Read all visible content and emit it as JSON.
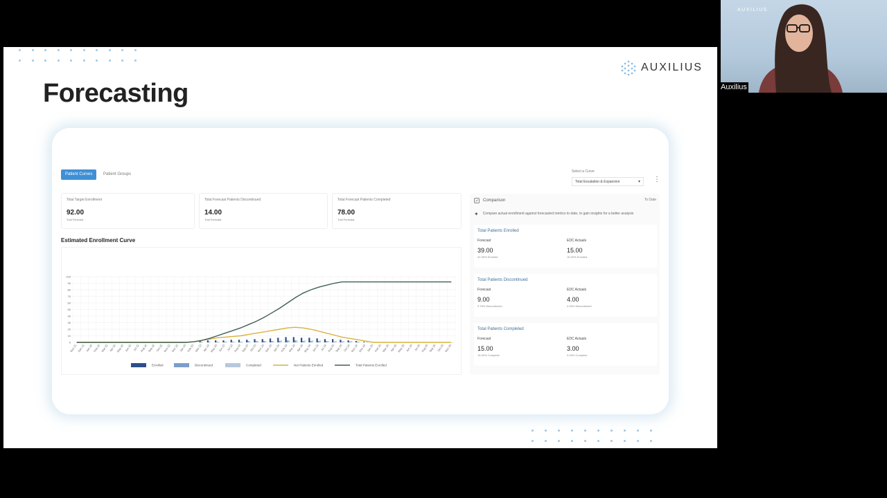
{
  "slide": {
    "title": "Forecasting",
    "logo_text": "AUXILIUS"
  },
  "tabs": [
    {
      "label": "Patient Curves",
      "active": true
    },
    {
      "label": "Patient Groups",
      "active": false
    }
  ],
  "curve_select": {
    "label": "Select a Curve",
    "value": "Total Escalation & Expansion"
  },
  "stats": [
    {
      "label": "Total Target Enrollment",
      "value": "92.00",
      "sub": "Trial Forecast"
    },
    {
      "label": "Total Forecast Patients Discontinued",
      "value": "14.00",
      "sub": "Trial Forecast"
    },
    {
      "label": "Total Forecast Patients Completed",
      "value": "78.00",
      "sub": "Trial Forecast"
    }
  ],
  "curve_title": "Estimated Enrollment Curve",
  "comparison": {
    "title": "Comparison",
    "scope": "To Date",
    "description": "Compare actual enrollment against forecasted metrics to date, to gain insights for a better analysis",
    "cards": [
      {
        "title": "Total Patients Enrolled",
        "forecast_label": "Forecast",
        "forecast_value": "39.00",
        "forecast_sub": "42.39% Enrolled",
        "actual_label": "EDC Actuals",
        "actual_value": "15.00",
        "actual_sub": "16.30% Enrolled"
      },
      {
        "title": "Total Patients Discontinued",
        "forecast_label": "Forecast",
        "forecast_value": "9.00",
        "forecast_sub": "9.78% Discontinued",
        "actual_label": "EDC Actuals",
        "actual_value": "4.00",
        "actual_sub": "4.35% Discontinued"
      },
      {
        "title": "Total Patients Completed",
        "forecast_label": "Forecast",
        "forecast_value": "15.00",
        "forecast_sub": "16.30% Complete",
        "actual_label": "EDC Actuals",
        "actual_value": "3.00",
        "actual_sub": "3.26% Complete"
      }
    ]
  },
  "chart_data": {
    "type": "line",
    "title": "Estimated Enrollment Curve",
    "ylim": [
      0,
      100
    ],
    "yticks": [
      0,
      10,
      20,
      30,
      40,
      50,
      60,
      70,
      80,
      90,
      100
    ],
    "x": [
      "Nov 21",
      "Dec 21",
      "Jan 22",
      "Feb 22",
      "Mar 22",
      "Apr 22",
      "May 22",
      "Jun 22",
      "Jul 22",
      "Aug 22",
      "Sep 22",
      "Oct 22",
      "Nov 22",
      "Dec 22",
      "Jan 23",
      "Feb 23",
      "Mar 23",
      "Apr 23",
      "May 23",
      "Jun 23",
      "Jul 23",
      "Aug 23",
      "Sep 23",
      "Oct 23",
      "Nov 23",
      "Dec 23",
      "Jan 24",
      "Feb 24",
      "Mar 24",
      "Apr 24",
      "May 24",
      "Jun 24",
      "Jul 24",
      "Aug 24",
      "Sep 24",
      "Oct 24",
      "Nov 24",
      "Dec 24",
      "Jan 25",
      "Feb 25",
      "Mar 25",
      "Apr 25",
      "May 25",
      "Jun 25",
      "Jul 25",
      "Aug 25",
      "Sep 25",
      "Oct 25",
      "Nov 25"
    ],
    "series": [
      {
        "name": "Enrolled",
        "kind": "bar",
        "color": "#2d4f8a",
        "values": [
          0,
          0,
          0,
          0,
          0,
          0,
          0,
          0,
          0,
          0,
          0,
          0,
          0,
          0,
          0,
          1,
          2,
          3,
          3,
          3,
          4,
          4,
          4,
          5,
          5,
          6,
          7,
          8,
          8,
          7,
          7,
          6,
          5,
          5,
          4,
          3,
          2,
          1,
          0,
          0,
          0,
          0,
          0,
          0,
          0,
          0,
          0,
          0,
          0
        ]
      },
      {
        "name": "Discontinued",
        "kind": "bar",
        "color": "#7aa0c9",
        "values": [
          0,
          0,
          0,
          0,
          0,
          0,
          0,
          0,
          0,
          0,
          0,
          0,
          0,
          0,
          0,
          0,
          1,
          1,
          1,
          1,
          1,
          1,
          2,
          2,
          2,
          2,
          2,
          3,
          3,
          2,
          2,
          2,
          2,
          1,
          1,
          1,
          1,
          0,
          0,
          0,
          0,
          0,
          0,
          0,
          0,
          0,
          0,
          0,
          0
        ]
      },
      {
        "name": "Completed",
        "kind": "bar",
        "color": "#b7c8dc",
        "values": [
          0,
          0,
          0,
          0,
          0,
          0,
          0,
          0,
          0,
          0,
          0,
          0,
          0,
          0,
          0,
          0,
          0,
          0,
          1,
          1,
          1,
          1,
          1,
          2,
          2,
          2,
          3,
          3,
          3,
          3,
          3,
          3,
          2,
          2,
          2,
          2,
          1,
          1,
          0,
          0,
          0,
          0,
          0,
          0,
          0,
          0,
          0,
          0,
          0
        ]
      },
      {
        "name": "Net Patients Enrolled",
        "kind": "line",
        "color": "#d9b23a",
        "values": [
          0,
          0,
          0,
          0,
          0,
          0,
          0,
          0,
          0,
          0,
          0,
          0,
          0,
          0,
          0,
          1,
          3,
          5,
          7,
          8,
          9,
          10,
          12,
          14,
          16,
          18,
          20,
          22,
          23,
          22,
          20,
          17,
          14,
          11,
          8,
          6,
          4,
          2,
          0,
          0,
          0,
          0,
          0,
          0,
          0,
          0,
          0,
          0,
          0
        ]
      },
      {
        "name": "Total Patients Enrolled",
        "kind": "line",
        "color": "#3e5f55",
        "values": [
          0,
          0,
          0,
          0,
          0,
          0,
          0,
          0,
          0,
          0,
          0,
          0,
          0,
          0,
          0,
          1,
          3,
          6,
          10,
          14,
          18,
          22,
          27,
          32,
          38,
          45,
          52,
          60,
          68,
          75,
          80,
          84,
          87,
          90,
          92,
          92,
          92,
          92,
          92,
          92,
          92,
          92,
          92,
          92,
          92,
          92,
          92,
          92,
          92
        ]
      }
    ]
  },
  "webcam": {
    "overlay_logo": "AUXILIUS",
    "name": "Auxilius"
  }
}
